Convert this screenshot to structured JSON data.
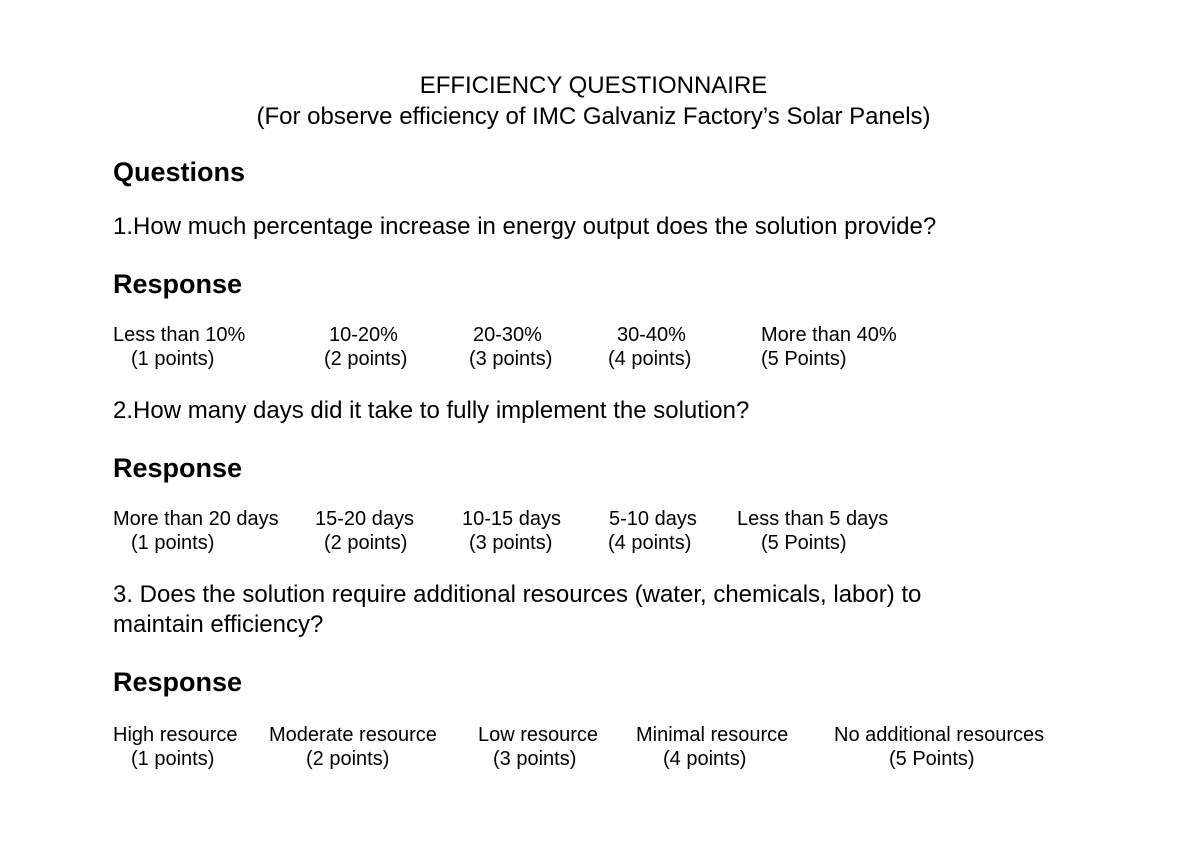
{
  "header": {
    "title": "EFFICIENCY QUESTIONNAIRE",
    "subtitle": "(For observe efficiency of IMC Galvaniz Factory’s Solar Panels)"
  },
  "questions_heading": "Questions",
  "questions": [
    {
      "text": "1.How much percentage increase in energy output does the solution provide?",
      "response_heading": "Response",
      "options": [
        {
          "label": "Less than 10%",
          "points": "(1 points)"
        },
        {
          "label": "10-20%",
          "points": "(2 points)"
        },
        {
          "label": "20-30%",
          "points": "(3 points)"
        },
        {
          "label": "30-40%",
          "points": "(4 points)"
        },
        {
          "label": "More than 40%",
          "points": "(5 Points)"
        }
      ]
    },
    {
      "text": "2.How many days did it take to fully implement the solution?",
      "response_heading": "Response",
      "options": [
        {
          "label": "More than 20 days",
          "points": "(1 points)"
        },
        {
          "label": "15-20 days",
          "points": "(2 points)"
        },
        {
          "label": "10-15 days",
          "points": "(3 points)"
        },
        {
          "label": "5-10 days",
          "points": "(4 points)"
        },
        {
          "label": "Less than 5 days",
          "points": "(5 Points)"
        }
      ]
    },
    {
      "text_line1": "3. Does the solution require additional resources (water, chemicals, labor) to",
      "text_line2": "maintain efficiency?",
      "response_heading": "Response",
      "options": [
        {
          "label": "High resource",
          "points": "(1 points)"
        },
        {
          "label": "Moderate resource",
          "points": "(2 points)"
        },
        {
          "label": "Low resource",
          "points": "(3 points)"
        },
        {
          "label": "Minimal resource",
          "points": "(4 points)"
        },
        {
          "label": "No additional resources",
          "points": "(5 Points)"
        }
      ]
    }
  ]
}
